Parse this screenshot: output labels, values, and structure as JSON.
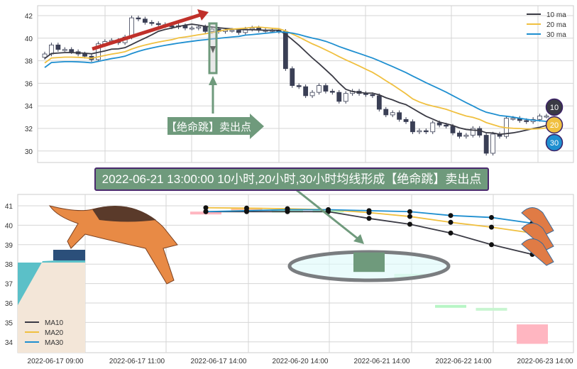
{
  "chart_data": [
    {
      "type": "candlestick",
      "yticks": [
        30,
        32,
        34,
        36,
        38,
        40,
        42
      ],
      "ylim": [
        29.1,
        42.9
      ],
      "grid": true,
      "legend": {
        "position": "top-right",
        "entries": [
          "10 ma",
          "20 ma",
          "30 ma"
        ]
      },
      "closes": [
        38.6,
        39.4,
        39.0,
        39.0,
        38.8,
        38.6,
        38.4,
        38.1,
        39.5,
        39.7,
        39.8,
        39.6,
        40.1,
        41.8,
        41.7,
        41.4,
        41.3,
        41.2,
        41.1,
        41.0,
        41.1,
        40.9,
        40.9,
        41.0,
        40.6,
        40.8,
        40.6,
        40.7,
        40.7,
        40.5,
        40.8,
        40.9,
        40.7,
        40.7,
        40.7,
        40.6,
        37.3,
        35.8,
        35.7,
        34.9,
        35.2,
        35.8,
        35.3,
        35.2,
        34.4,
        35.1,
        35.3,
        35.1,
        35.0,
        34.9,
        33.7,
        33.2,
        33.4,
        32.8,
        32.6,
        31.7,
        31.8,
        31.7,
        32.5,
        32.3,
        32.2,
        31.6,
        31.3,
        31.4,
        32.0,
        31.4,
        29.8,
        31.5,
        31.3,
        32.9,
        32.9,
        32.7,
        32.6,
        32.8,
        33.1,
        33.1
      ],
      "ma_periods": [
        10,
        20,
        30
      ],
      "annotation": "【绝命跳】卖出点",
      "badges": [
        "10",
        "20",
        "30"
      ]
    },
    {
      "type": "candlestick",
      "xticks": [
        "2022-06-17 09:00",
        "2022-06-17 11:00",
        "2022-06-17 14:00",
        "2022-06-20 14:00",
        "2022-06-21 14:00",
        "2022-06-22 14:00",
        "2022-06-23 14:00"
      ],
      "yticks": [
        34,
        35,
        36,
        37,
        38,
        39,
        40,
        41
      ],
      "ylim": [
        33.6,
        41.4
      ],
      "grid": true,
      "legend": {
        "position": "bottom-left",
        "entries": [
          "MA10",
          "MA20",
          "MA30"
        ]
      },
      "candles": [
        {
          "o": 40.6,
          "c": 40.7,
          "color": "#ffb6c1"
        },
        {
          "o": 40.8,
          "c": 40.9,
          "color": "#ffc49a"
        },
        {
          "o": 40.7,
          "c": 40.8,
          "color": "#b7f5c5"
        },
        {
          "o": 40.8,
          "c": 40.8,
          "color": "#b7f5c5"
        },
        {
          "o": 38.6,
          "c": 37.6,
          "color": "#6f9a7c"
        },
        {
          "o": 37.5,
          "c": 37.3,
          "color": "#d4f5d9"
        },
        {
          "o": 35.9,
          "c": 35.8,
          "color": "#b7f5c5"
        },
        {
          "o": 35.75,
          "c": 35.7,
          "color": "#c8f5d0"
        },
        {
          "o": 34.9,
          "c": 33.9,
          "color": "#ffb6c1"
        }
      ],
      "ma10": [
        40.7,
        40.7,
        40.7,
        40.7,
        40.35,
        40.05,
        39.6,
        39.0,
        38.5
      ],
      "ma20": [
        40.9,
        40.88,
        40.85,
        40.8,
        40.65,
        40.45,
        40.15,
        39.9,
        39.6
      ],
      "ma30": [
        40.7,
        40.75,
        40.8,
        40.8,
        40.75,
        40.7,
        40.5,
        40.4,
        40.1
      ]
    }
  ],
  "colors": {
    "ma10": "#3a3a44",
    "ma20": "#f0c040",
    "ma30": "#1f8fd0",
    "annotation": "#6f9a7c",
    "arrow": "#c0302a"
  },
  "banner": "2022-06-21 13:00:00 10小时,20小时,30小时均线形成【绝命跳】卖出点"
}
